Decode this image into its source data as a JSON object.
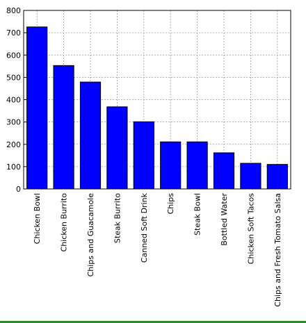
{
  "chart_data": {
    "type": "bar",
    "categories": [
      "Chicken Bowl",
      "Chicken Burrito",
      "Chips and Guacamole",
      "Steak Burrito",
      "Canned Soft Drink",
      "Chips",
      "Steak Bowl",
      "Bottled Water",
      "Chicken Soft Tacos",
      "Chips and Fresh Tomato Salsa"
    ],
    "values": [
      726,
      553,
      479,
      368,
      301,
      211,
      211,
      162,
      115,
      110
    ],
    "color": "#0000ff",
    "ylim": [
      0,
      800
    ],
    "yticks": [
      0,
      100,
      200,
      300,
      400,
      500,
      600,
      700,
      800
    ],
    "grid": true
  }
}
